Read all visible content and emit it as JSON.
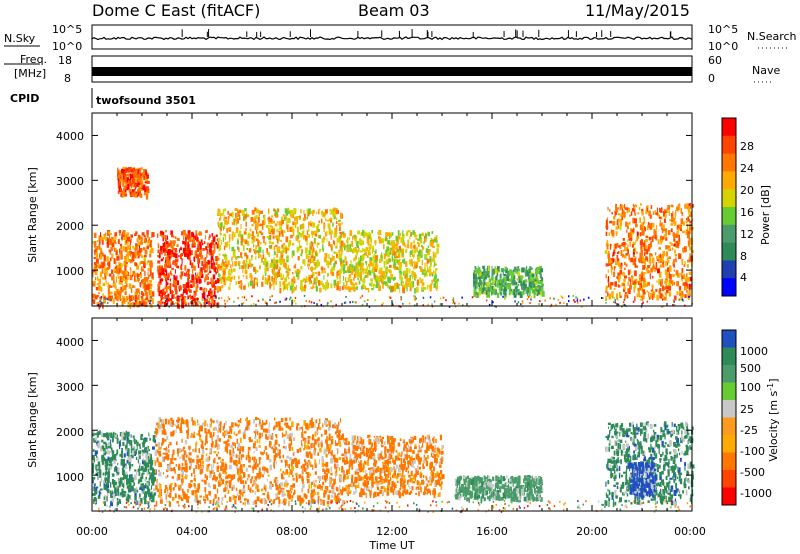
{
  "header": {
    "radar_title": "Dome C East (fitACF)",
    "beam": "Beam 03",
    "date": "11/May/2015"
  },
  "nsky_panel": {
    "label": "N.Sky",
    "left_ticks": [
      "10^5",
      "10^0"
    ],
    "right_ticks": [
      "10^5",
      "10^0"
    ],
    "right_label": "N.Search"
  },
  "freq_panel": {
    "label_line1": "Freq.",
    "label_line2": "[MHz]",
    "left_ticks": [
      "18",
      "8"
    ],
    "right_ticks": [
      "60",
      "0"
    ],
    "right_label": "Nave"
  },
  "cpid": {
    "label": "CPID",
    "program": "twofsound 3501"
  },
  "colors": {
    "power_scale": [
      "#0000ff",
      "#2040b0",
      "#2e8b57",
      "#4a9d6a",
      "#66cc33",
      "#d4d400",
      "#ffaa00",
      "#ff7700",
      "#ff4400",
      "#ff0000"
    ],
    "velocity_scale": [
      "#ff0000",
      "#ff4400",
      "#ff7700",
      "#ffaa00",
      "#ff9a20",
      "#c8c8c8",
      "#66cc33",
      "#4a9d6a",
      "#2e8b57",
      "#2050c0"
    ]
  },
  "chart_data": [
    {
      "type": "heatmap",
      "panel": "power",
      "ylabel": "Slant Range [km]",
      "ylim": [
        200,
        4500
      ],
      "y_ticks": [
        "4000",
        "3000",
        "2000",
        "1000"
      ],
      "colorbar_label": "Power [dB]",
      "colorbar_ticks": [
        "28",
        "24",
        "20",
        "16",
        "12",
        "8",
        "4"
      ],
      "colorbar_range": [
        0,
        32
      ],
      "scatter_blocks": [
        {
          "t": [
            0.0,
            2.4
          ],
          "range": [
            250,
            1900
          ],
          "value": 24
        },
        {
          "t": [
            2.6,
            5.0
          ],
          "range": [
            250,
            1900
          ],
          "value": 28
        },
        {
          "t": [
            5.0,
            10.0
          ],
          "range": [
            600,
            2400
          ],
          "value": 20
        },
        {
          "t": [
            10.0,
            13.8
          ],
          "range": [
            600,
            1900
          ],
          "value": 18
        },
        {
          "t": [
            15.2,
            18.0
          ],
          "range": [
            500,
            1100
          ],
          "value": 12
        },
        {
          "t": [
            20.5,
            24.0
          ],
          "range": [
            400,
            2500
          ],
          "value": 24
        },
        {
          "t": [
            1.0,
            2.2
          ],
          "range": [
            2700,
            3300
          ],
          "value": 26
        }
      ]
    },
    {
      "type": "heatmap",
      "panel": "velocity",
      "ylabel": "Slant Range [km]",
      "ylim": [
        200,
        4500
      ],
      "y_ticks": [
        "4000",
        "3000",
        "2000",
        "1000"
      ],
      "colorbar_label": "Velocity [m s^-1]",
      "colorbar_ticks": [
        "1000",
        "500",
        "100",
        "25",
        "-25",
        "-100",
        "-500",
        "-1000"
      ],
      "scatter_blocks": [
        {
          "t": [
            0.0,
            2.5
          ],
          "range": [
            400,
            2000
          ],
          "value": 500
        },
        {
          "t": [
            2.5,
            10.0
          ],
          "range": [
            400,
            2300
          ],
          "value": -100
        },
        {
          "t": [
            10.0,
            14.0
          ],
          "range": [
            600,
            1900
          ],
          "value": -100
        },
        {
          "t": [
            14.5,
            18.0
          ],
          "range": [
            500,
            1000
          ],
          "value": 100
        },
        {
          "t": [
            20.5,
            24.0
          ],
          "range": [
            400,
            2200
          ],
          "value": 500
        },
        {
          "t": [
            21.5,
            22.5
          ],
          "range": [
            600,
            1300
          ],
          "value": 1000
        }
      ]
    }
  ],
  "x_axis": {
    "xlabel": "Time UT",
    "tick_labels": [
      "00:00",
      "04:00",
      "08:00",
      "12:00",
      "16:00",
      "20:00",
      "00:00"
    ],
    "xlim": [
      0,
      24
    ]
  }
}
